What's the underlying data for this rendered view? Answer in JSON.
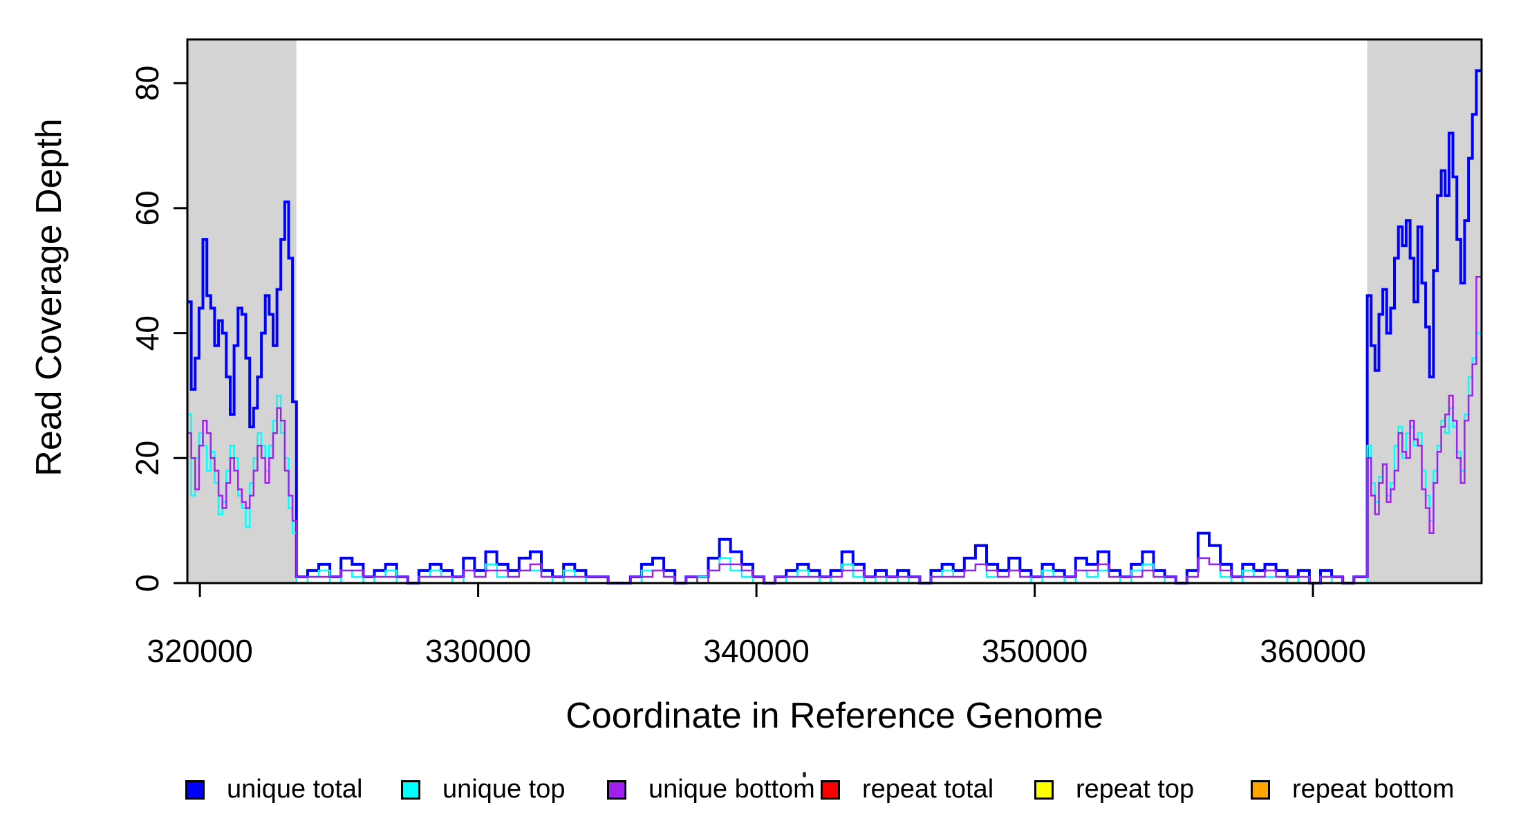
{
  "chart_data": {
    "type": "step-line",
    "title": "",
    "xlabel": "Coordinate in Reference Genome",
    "ylabel": "Read Coverage Depth",
    "xlim": [
      319550,
      366060
    ],
    "ylim": [
      0,
      87
    ],
    "xticks": [
      320000,
      330000,
      340000,
      350000,
      360000
    ],
    "yticks": [
      0,
      20,
      40,
      60,
      80
    ],
    "grid": false,
    "legend_position": "bottom",
    "shade_color": "#D4D4D4",
    "shaded_regions": [
      {
        "x_start": 319550,
        "x_end": 323470
      },
      {
        "x_start": 361950,
        "x_end": 366060
      }
    ],
    "colors": {
      "unique_total": "#0000FF",
      "unique_top": "#00FFFF",
      "unique_bottom": "#A020F0",
      "repeat_total": "#FF0000",
      "repeat_top": "#FFFF00",
      "repeat_bottom": "#FFA500"
    },
    "line_widths": {
      "unique_total": 4,
      "unique_top": 2.5,
      "unique_bottom": 2.5,
      "repeat_total": 2.5,
      "repeat_top": 2.5,
      "repeat_bottom": 3
    },
    "draw_order": [
      "unique_total",
      "unique_top",
      "unique_bottom",
      "repeat_total",
      "repeat_top",
      "repeat_bottom"
    ],
    "constant_series": {
      "repeat_total": 0,
      "repeat_top": 0,
      "repeat_bottom": 0
    },
    "segments": [
      {
        "x0": 319550,
        "dx": 140,
        "values": {
          "unique_total": [
            45,
            31,
            36,
            44,
            55,
            46,
            44,
            38,
            42,
            40,
            33,
            27,
            38,
            44,
            43,
            36,
            25,
            28,
            33,
            40,
            46,
            43,
            38,
            47,
            55,
            61,
            52,
            29
          ],
          "unique_top": [
            27,
            14,
            20,
            24,
            22,
            18,
            21,
            16,
            11,
            13,
            18,
            22,
            20,
            14,
            12,
            9,
            16,
            20,
            24,
            22,
            18,
            22,
            26,
            30,
            24,
            20,
            12,
            8
          ],
          "unique_bottom": [
            24,
            20,
            15,
            22,
            26,
            24,
            20,
            18,
            14,
            12,
            16,
            20,
            18,
            15,
            13,
            12,
            14,
            18,
            22,
            20,
            16,
            20,
            24,
            28,
            26,
            18,
            14,
            10
          ]
        }
      },
      {
        "x0": 323470,
        "dx": 400,
        "values": {
          "unique_total": [
            1,
            2,
            3,
            1,
            4,
            3,
            1,
            2,
            3,
            1,
            0,
            2,
            3,
            2,
            1,
            4,
            2,
            5,
            3,
            2,
            4,
            5,
            2,
            1,
            3,
            2,
            1,
            1,
            0,
            0,
            1,
            3,
            4,
            2,
            0,
            1,
            1,
            4,
            7,
            5,
            3,
            1,
            0,
            1,
            2,
            3,
            2,
            1,
            2,
            5,
            3,
            1,
            2,
            1,
            2,
            1,
            0,
            2,
            3,
            2,
            4,
            6,
            3,
            2,
            4,
            2,
            1,
            3,
            2,
            1,
            4,
            3,
            5,
            2,
            1,
            3,
            5,
            2,
            1,
            0,
            2,
            8,
            6,
            3,
            1,
            3,
            2,
            3,
            2,
            1,
            2,
            0,
            2,
            1,
            0,
            1
          ],
          "unique_top": [
            0,
            1,
            2,
            0,
            2,
            1,
            0,
            1,
            2,
            0,
            0,
            1,
            2,
            1,
            0,
            2,
            1,
            3,
            1,
            1,
            2,
            2,
            1,
            0,
            2,
            1,
            0,
            0,
            0,
            0,
            0,
            2,
            2,
            1,
            0,
            0,
            1,
            2,
            4,
            2,
            1,
            0,
            0,
            0,
            1,
            2,
            1,
            0,
            1,
            3,
            1,
            0,
            1,
            0,
            1,
            0,
            0,
            1,
            2,
            1,
            2,
            3,
            1,
            1,
            2,
            1,
            0,
            2,
            1,
            0,
            2,
            1,
            2,
            1,
            0,
            2,
            3,
            1,
            0,
            0,
            1,
            4,
            3,
            1,
            0,
            2,
            1,
            1,
            1,
            0,
            1,
            0,
            1,
            0,
            0,
            0
          ],
          "unique_bottom": [
            1,
            1,
            1,
            1,
            2,
            2,
            1,
            1,
            1,
            1,
            0,
            1,
            1,
            1,
            1,
            2,
            1,
            2,
            2,
            1,
            2,
            3,
            1,
            1,
            1,
            1,
            1,
            1,
            0,
            0,
            1,
            1,
            2,
            1,
            0,
            1,
            0,
            2,
            3,
            3,
            2,
            1,
            0,
            1,
            1,
            1,
            1,
            1,
            1,
            2,
            2,
            1,
            1,
            1,
            1,
            1,
            0,
            1,
            1,
            1,
            2,
            3,
            2,
            1,
            2,
            1,
            1,
            1,
            1,
            1,
            2,
            2,
            3,
            1,
            1,
            1,
            2,
            1,
            1,
            0,
            1,
            4,
            3,
            2,
            1,
            1,
            1,
            2,
            1,
            1,
            1,
            0,
            1,
            1,
            0,
            1
          ]
        }
      },
      {
        "x0": 361950,
        "dx": 140,
        "values": {
          "unique_total": [
            46,
            38,
            34,
            43,
            47,
            40,
            44,
            52,
            57,
            54,
            58,
            52,
            45,
            57,
            48,
            41,
            33,
            50,
            62,
            66,
            62,
            72,
            65,
            55,
            48,
            58,
            68,
            75,
            82
          ],
          "unique_top": [
            22,
            16,
            13,
            17,
            19,
            14,
            16,
            22,
            25,
            20,
            24,
            25,
            22,
            24,
            18,
            14,
            10,
            18,
            22,
            26,
            24,
            28,
            25,
            21,
            18,
            27,
            33,
            36,
            40
          ],
          "unique_bottom": [
            20,
            14,
            11,
            16,
            19,
            13,
            15,
            18,
            24,
            21,
            20,
            26,
            23,
            22,
            15,
            12,
            8,
            16,
            21,
            25,
            27,
            30,
            26,
            20,
            16,
            26,
            30,
            35,
            49
          ]
        }
      }
    ]
  },
  "legend": {
    "items": [
      {
        "id": "unique_total",
        "label": "unique total"
      },
      {
        "id": "unique_top",
        "label": "unique top"
      },
      {
        "id": "unique_bottom",
        "label": "unique bottom"
      },
      {
        "id": "repeat_total",
        "label": "repeat total"
      },
      {
        "id": "repeat_top",
        "label": "repeat top"
      },
      {
        "id": "repeat_bottom",
        "label": "repeat bottom"
      }
    ]
  }
}
